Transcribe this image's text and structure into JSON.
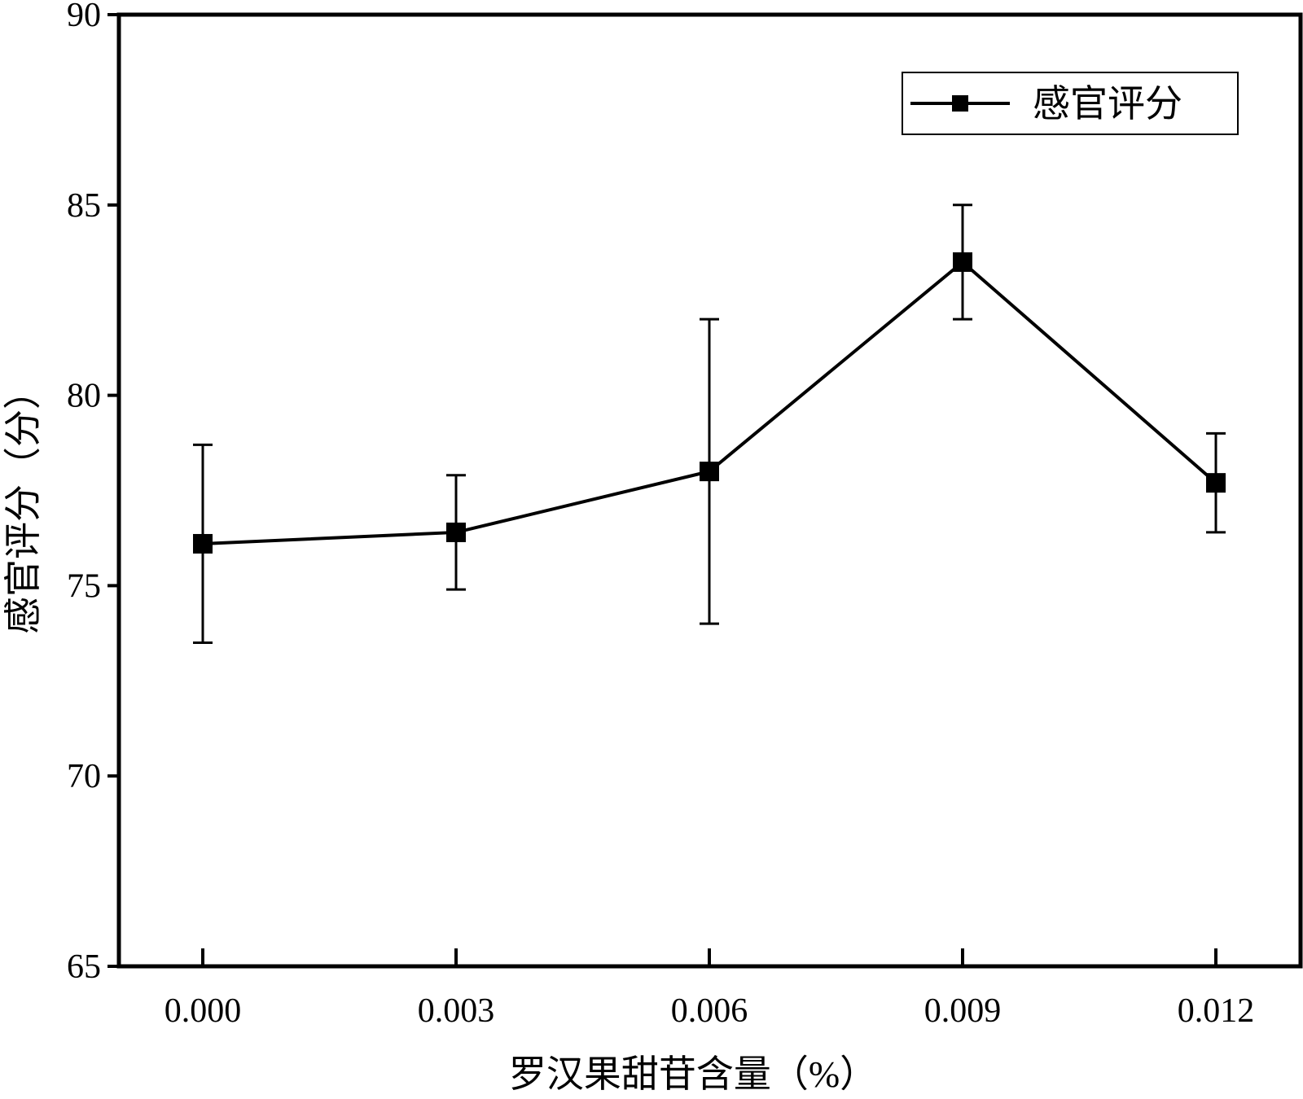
{
  "chart_data": {
    "type": "line",
    "x": [
      "0.000",
      "0.003",
      "0.006",
      "0.009",
      "0.012"
    ],
    "series": [
      {
        "name": "感官评分",
        "values": [
          76.1,
          76.4,
          78.0,
          83.5,
          77.7
        ],
        "error": [
          2.6,
          1.5,
          4.0,
          1.5,
          1.3
        ]
      }
    ],
    "xlabel": "罗汉果甜苷含量（%）",
    "ylabel": "感官评分（分）",
    "ylim": [
      65,
      90
    ],
    "yticks": [
      "65",
      "70",
      "75",
      "80",
      "85",
      "90"
    ],
    "grid": false,
    "legend_position": "top-right",
    "line_color": "#000000",
    "marker": "square"
  }
}
